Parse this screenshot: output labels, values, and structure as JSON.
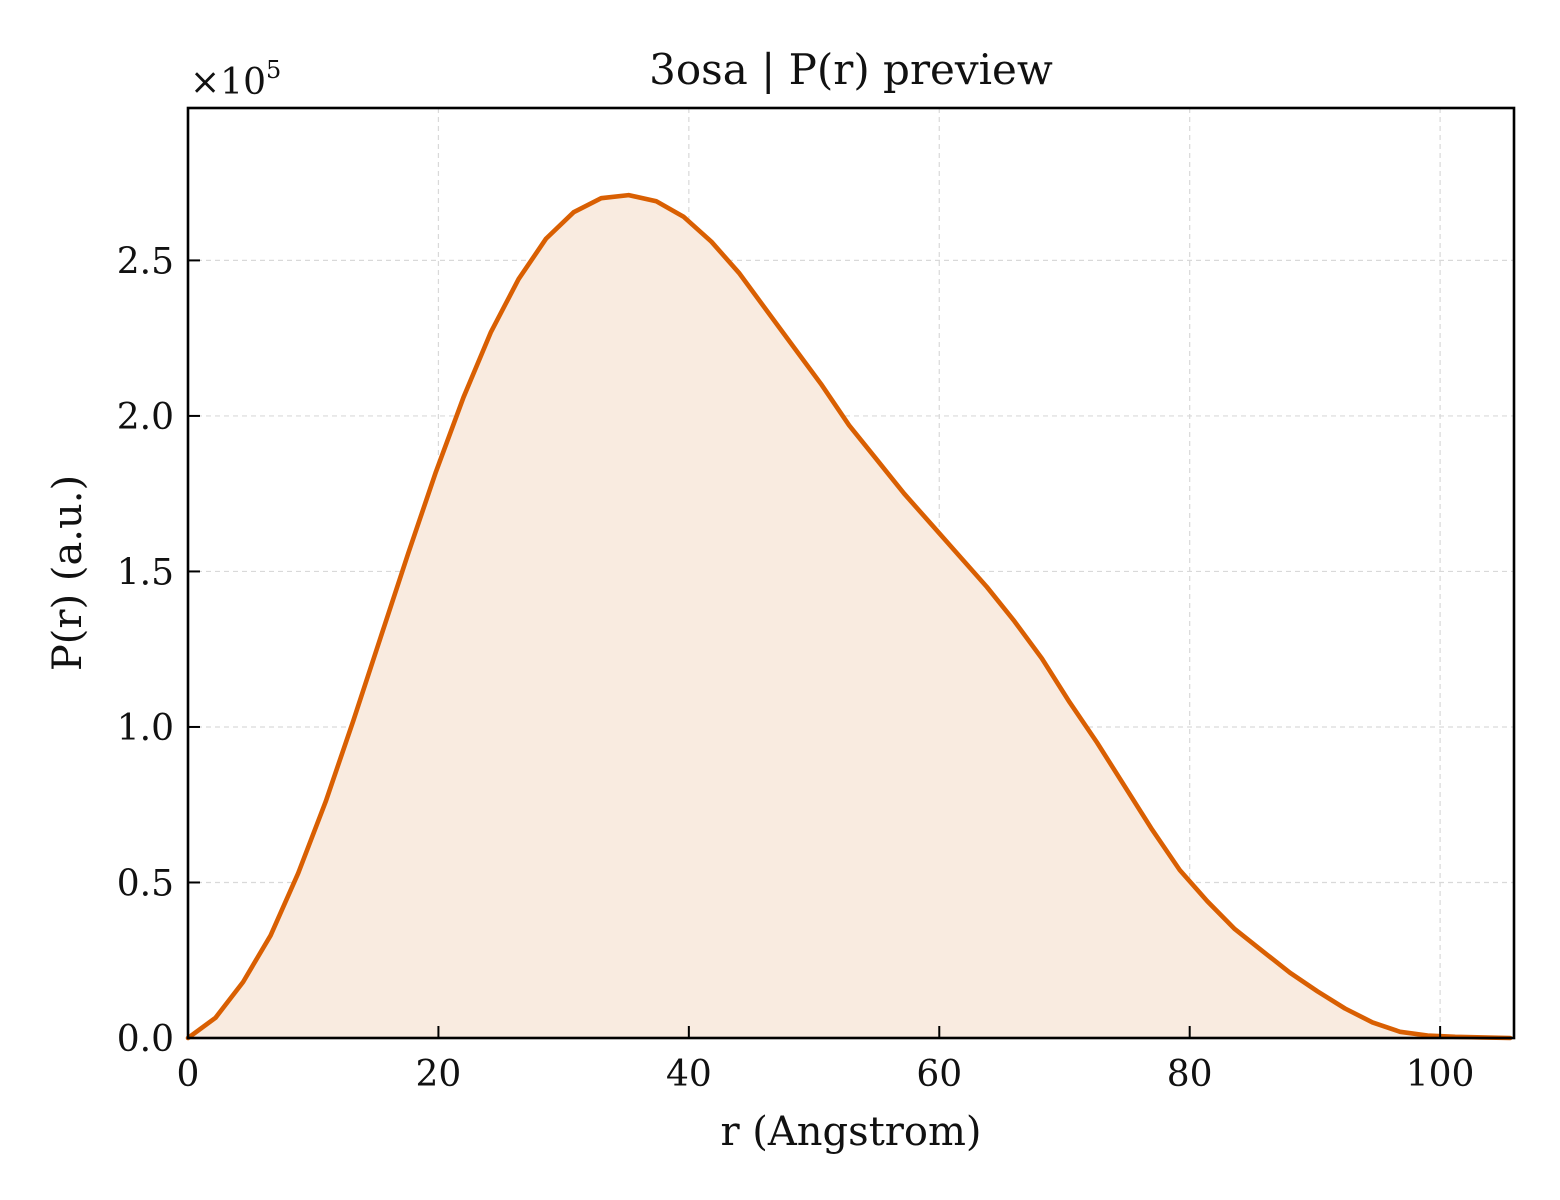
{
  "chart_data": {
    "type": "area",
    "title": "3osa | P(r) preview",
    "xlabel": "r (Angstrom)",
    "ylabel": "P(r) (a.u.)",
    "y_multiplier_label": "×10",
    "y_multiplier_exponent": "5",
    "xlim": [
      0,
      105.9
    ],
    "ylim": [
      0,
      2.99
    ],
    "x_ticks": [
      0,
      20,
      40,
      60,
      80,
      100
    ],
    "x_tick_labels": [
      "0",
      "20",
      "40",
      "60",
      "80",
      "100"
    ],
    "y_ticks": [
      0,
      0.5,
      1.0,
      1.5,
      2.0,
      2.5
    ],
    "y_tick_labels": [
      "0.0",
      "0.5",
      "1.0",
      "1.5",
      "2.0",
      "2.5"
    ],
    "grid": true,
    "legend": "none",
    "colors": {
      "line": "#d95f02",
      "fill": "#f9ebe0",
      "grid": "#d9d9d9",
      "axes": "#000000"
    },
    "series": [
      {
        "x": [
          0,
          2.2,
          4.4,
          6.6,
          8.8,
          11.0,
          13.2,
          15.4,
          17.6,
          19.8,
          22.0,
          24.2,
          26.4,
          28.6,
          30.8,
          33.0,
          35.2,
          37.4,
          39.6,
          41.8,
          44.0,
          46.2,
          48.4,
          50.6,
          52.8,
          55.0,
          57.2,
          59.4,
          61.6,
          63.8,
          66.0,
          68.2,
          70.4,
          72.6,
          74.8,
          77.0,
          79.2,
          81.4,
          83.6,
          85.8,
          88.0,
          90.2,
          92.4,
          94.6,
          96.8,
          99.0,
          101.2,
          103.4,
          105.6
        ],
        "y": [
          0.0,
          0.065,
          0.18,
          0.33,
          0.53,
          0.76,
          1.02,
          1.29,
          1.56,
          1.82,
          2.06,
          2.27,
          2.44,
          2.57,
          2.655,
          2.7,
          2.71,
          2.69,
          2.64,
          2.56,
          2.46,
          2.34,
          2.22,
          2.1,
          1.97,
          1.86,
          1.75,
          1.65,
          1.55,
          1.45,
          1.34,
          1.22,
          1.08,
          0.95,
          0.81,
          0.67,
          0.54,
          0.44,
          0.35,
          0.28,
          0.21,
          0.15,
          0.095,
          0.05,
          0.02,
          0.008,
          0.004,
          0.002,
          0.0
        ]
      }
    ]
  }
}
